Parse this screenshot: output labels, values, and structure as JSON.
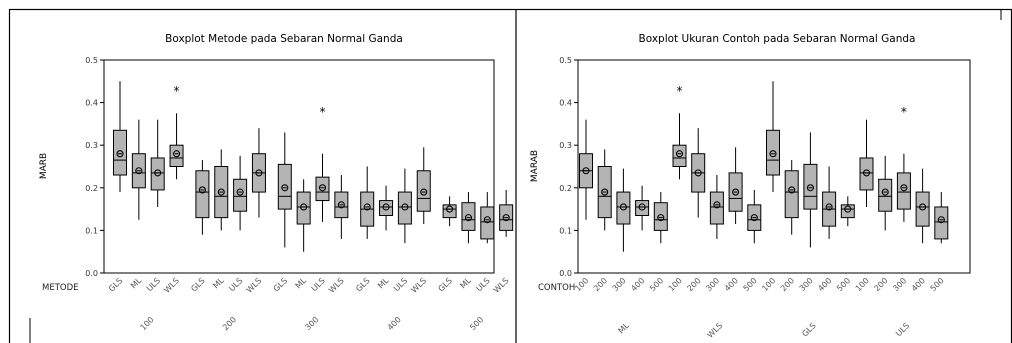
{
  "chart_data": [
    {
      "type": "boxplot",
      "title": "Boxplot Metode pada Sebaran Normal Ganda",
      "ylabel": "MARB",
      "ylim": [
        0,
        0.5
      ],
      "yticks": [
        0.0,
        0.1,
        0.2,
        0.3,
        0.4,
        0.5
      ],
      "ytick_labels": [
        "0.0",
        "0.1",
        "0.2",
        "0.3",
        "0.4",
        "0.5"
      ],
      "row_header": "METODE",
      "inner_labels": [
        "GLS",
        "ML",
        "ULS",
        "WLS"
      ],
      "outer_labels": [
        "100",
        "200",
        "300",
        "400",
        "500"
      ],
      "boxes": [
        {
          "min": 0.19,
          "q1": 0.23,
          "median": 0.265,
          "q3": 0.335,
          "max": 0.45,
          "mean": 0.28
        },
        {
          "min": 0.125,
          "q1": 0.2,
          "median": 0.235,
          "q3": 0.28,
          "max": 0.36,
          "mean": 0.24
        },
        {
          "min": 0.155,
          "q1": 0.195,
          "median": 0.235,
          "q3": 0.27,
          "max": 0.36,
          "mean": 0.235
        },
        {
          "min": 0.22,
          "q1": 0.25,
          "median": 0.27,
          "q3": 0.3,
          "max": 0.375,
          "mean": 0.28,
          "outliers": [
            0.43
          ]
        },
        {
          "min": 0.09,
          "q1": 0.13,
          "median": 0.19,
          "q3": 0.24,
          "max": 0.265,
          "mean": 0.195
        },
        {
          "min": 0.1,
          "q1": 0.13,
          "median": 0.18,
          "q3": 0.25,
          "max": 0.29,
          "mean": 0.19
        },
        {
          "min": 0.1,
          "q1": 0.145,
          "median": 0.18,
          "q3": 0.22,
          "max": 0.275,
          "mean": 0.19
        },
        {
          "min": 0.13,
          "q1": 0.19,
          "median": 0.235,
          "q3": 0.28,
          "max": 0.34,
          "mean": 0.235
        },
        {
          "min": 0.06,
          "q1": 0.15,
          "median": 0.18,
          "q3": 0.255,
          "max": 0.33,
          "mean": 0.2
        },
        {
          "min": 0.05,
          "q1": 0.115,
          "median": 0.155,
          "q3": 0.19,
          "max": 0.22,
          "mean": 0.155
        },
        {
          "min": 0.12,
          "q1": 0.17,
          "median": 0.19,
          "q3": 0.225,
          "max": 0.28,
          "mean": 0.2,
          "outliers": [
            0.38
          ]
        },
        {
          "min": 0.08,
          "q1": 0.13,
          "median": 0.155,
          "q3": 0.19,
          "max": 0.23,
          "mean": 0.16
        },
        {
          "min": 0.08,
          "q1": 0.11,
          "median": 0.15,
          "q3": 0.19,
          "max": 0.25,
          "mean": 0.155
        },
        {
          "min": 0.1,
          "q1": 0.135,
          "median": 0.155,
          "q3": 0.17,
          "max": 0.205,
          "mean": 0.155
        },
        {
          "min": 0.07,
          "q1": 0.115,
          "median": 0.155,
          "q3": 0.19,
          "max": 0.245,
          "mean": 0.155
        },
        {
          "min": 0.115,
          "q1": 0.145,
          "median": 0.175,
          "q3": 0.24,
          "max": 0.295,
          "mean": 0.19
        },
        {
          "min": 0.11,
          "q1": 0.13,
          "median": 0.15,
          "q3": 0.16,
          "max": 0.18,
          "mean": 0.15
        },
        {
          "min": 0.07,
          "q1": 0.1,
          "median": 0.125,
          "q3": 0.165,
          "max": 0.19,
          "mean": 0.13
        },
        {
          "min": 0.07,
          "q1": 0.08,
          "median": 0.12,
          "q3": 0.155,
          "max": 0.19,
          "mean": 0.125
        },
        {
          "min": 0.085,
          "q1": 0.1,
          "median": 0.125,
          "q3": 0.16,
          "max": 0.195,
          "mean": 0.13
        }
      ]
    },
    {
      "type": "boxplot",
      "title": "Boxplot Ukuran Contoh pada Sebaran Normal Ganda",
      "ylabel": "MARAB",
      "ylim": [
        0,
        0.5
      ],
      "yticks": [
        0.0,
        0.1,
        0.2,
        0.3,
        0.4,
        0.5
      ],
      "ytick_labels": [
        "0.0",
        "0.1",
        "0.2",
        "0.3",
        "0.4",
        "0.5"
      ],
      "row_header": "CONTOH",
      "inner_labels": [
        "100",
        "200",
        "300",
        "400",
        "500"
      ],
      "outer_labels": [
        "ML",
        "WLS",
        "GLS",
        "ULS"
      ],
      "outer_label_positions": [
        2,
        7,
        12,
        17
      ],
      "boxes": [
        {
          "min": 0.125,
          "q1": 0.2,
          "median": 0.24,
          "q3": 0.28,
          "max": 0.36,
          "mean": 0.24
        },
        {
          "min": 0.1,
          "q1": 0.13,
          "median": 0.18,
          "q3": 0.25,
          "max": 0.29,
          "mean": 0.19
        },
        {
          "min": 0.05,
          "q1": 0.115,
          "median": 0.155,
          "q3": 0.19,
          "max": 0.245,
          "mean": 0.155
        },
        {
          "min": 0.1,
          "q1": 0.135,
          "median": 0.155,
          "q3": 0.17,
          "max": 0.205,
          "mean": 0.155
        },
        {
          "min": 0.07,
          "q1": 0.1,
          "median": 0.125,
          "q3": 0.165,
          "max": 0.19,
          "mean": 0.13
        },
        {
          "min": 0.22,
          "q1": 0.25,
          "median": 0.27,
          "q3": 0.3,
          "max": 0.375,
          "mean": 0.28,
          "outliers": [
            0.43
          ]
        },
        {
          "min": 0.13,
          "q1": 0.19,
          "median": 0.235,
          "q3": 0.28,
          "max": 0.34,
          "mean": 0.235
        },
        {
          "min": 0.08,
          "q1": 0.115,
          "median": 0.155,
          "q3": 0.19,
          "max": 0.23,
          "mean": 0.16
        },
        {
          "min": 0.115,
          "q1": 0.145,
          "median": 0.175,
          "q3": 0.235,
          "max": 0.295,
          "mean": 0.19
        },
        {
          "min": 0.07,
          "q1": 0.1,
          "median": 0.125,
          "q3": 0.16,
          "max": 0.195,
          "mean": 0.13
        },
        {
          "min": 0.19,
          "q1": 0.23,
          "median": 0.265,
          "q3": 0.335,
          "max": 0.45,
          "mean": 0.28
        },
        {
          "min": 0.09,
          "q1": 0.13,
          "median": 0.19,
          "q3": 0.24,
          "max": 0.265,
          "mean": 0.195
        },
        {
          "min": 0.06,
          "q1": 0.15,
          "median": 0.18,
          "q3": 0.255,
          "max": 0.33,
          "mean": 0.2
        },
        {
          "min": 0.08,
          "q1": 0.11,
          "median": 0.15,
          "q3": 0.19,
          "max": 0.25,
          "mean": 0.155
        },
        {
          "min": 0.11,
          "q1": 0.13,
          "median": 0.15,
          "q3": 0.16,
          "max": 0.18,
          "mean": 0.15
        },
        {
          "min": 0.155,
          "q1": 0.195,
          "median": 0.235,
          "q3": 0.27,
          "max": 0.36,
          "mean": 0.235
        },
        {
          "min": 0.1,
          "q1": 0.145,
          "median": 0.18,
          "q3": 0.22,
          "max": 0.275,
          "mean": 0.19
        },
        {
          "min": 0.12,
          "q1": 0.15,
          "median": 0.19,
          "q3": 0.235,
          "max": 0.28,
          "mean": 0.2,
          "outliers": [
            0.38
          ]
        },
        {
          "min": 0.07,
          "q1": 0.11,
          "median": 0.155,
          "q3": 0.19,
          "max": 0.245,
          "mean": 0.155
        },
        {
          "min": 0.07,
          "q1": 0.08,
          "median": 0.12,
          "q3": 0.155,
          "max": 0.19,
          "mean": 0.125
        }
      ]
    }
  ]
}
